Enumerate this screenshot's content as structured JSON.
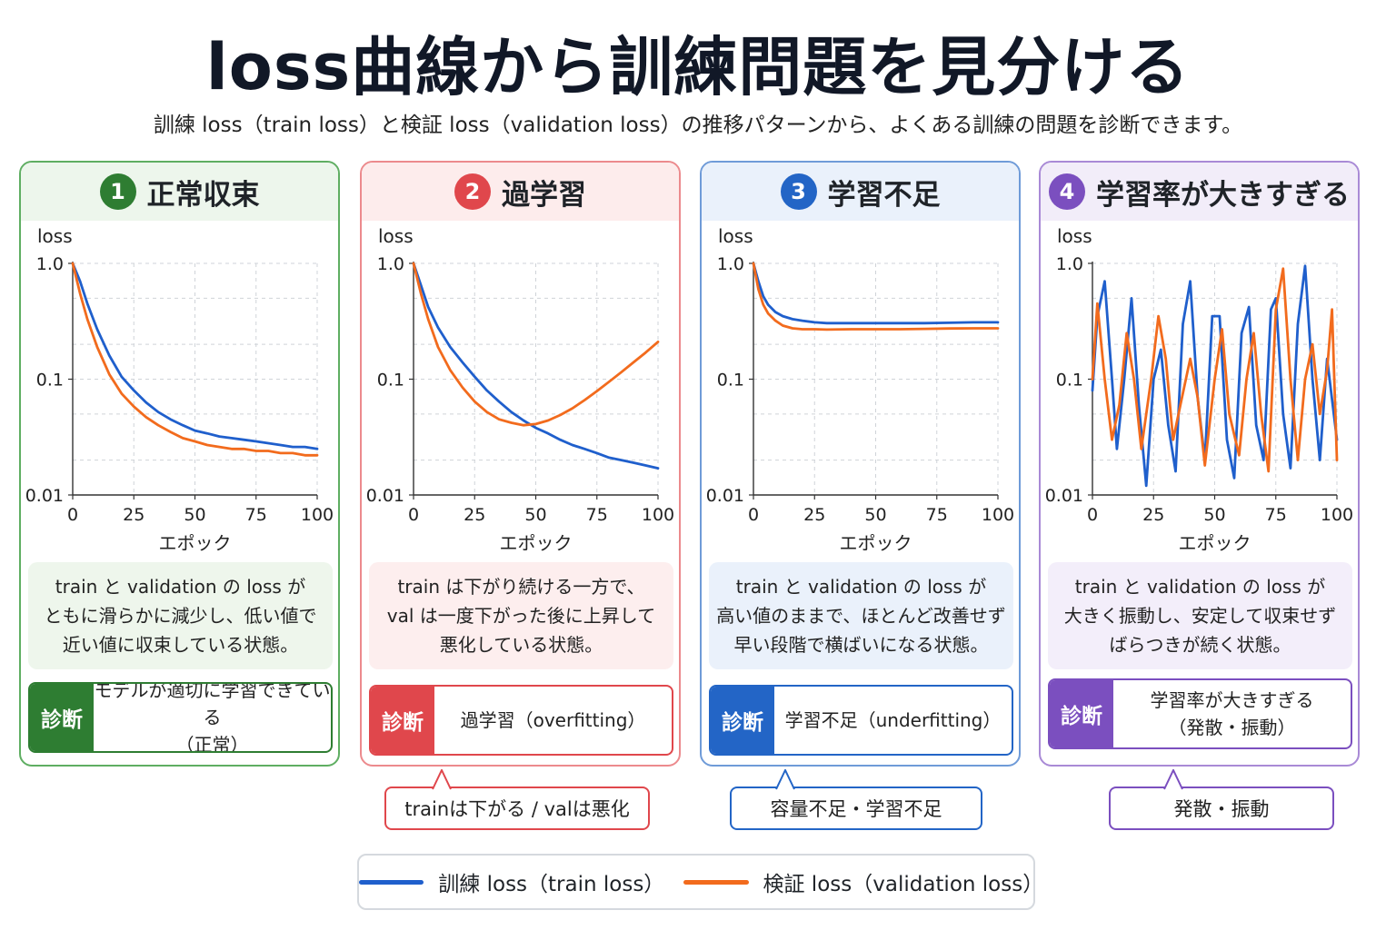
{
  "title": "loss曲線から訓練問題を見分ける",
  "subtitle": "訓練 loss（train loss）と検証 loss（validation loss）の推移パターンから、よくある訓練の問題を診断できます。",
  "colors": {
    "train": "#1f5fcc",
    "validation": "#f26b1d"
  },
  "diagnosis_label": "診断",
  "legend": {
    "train": "訓練 loss（train loss）",
    "validation": "検証 loss（validation loss）"
  },
  "panels": [
    {
      "number": "1",
      "title": "正常収束",
      "accent": "#2e7d32",
      "border": "#5fae62",
      "header_bg": "#edf6ec",
      "desc_bg": "#eef6ec",
      "description": "train と validation の loss が\nともに滑らかに減少し、低い値で\n近い値に収束している状態。",
      "diagnosis": "モデルが適切に学習できている\n（正常）",
      "callout": ""
    },
    {
      "number": "2",
      "title": "過学習",
      "accent": "#e0474c",
      "border": "#ec8a8d",
      "header_bg": "#fdecec",
      "desc_bg": "#fdeeee",
      "description": "train は下がり続ける一方で、\nval は一度下がった後に上昇して\n悪化している状態。",
      "diagnosis": "過学習（overfitting）",
      "callout": "trainは下がる / valは悪化"
    },
    {
      "number": "3",
      "title": "学習不足",
      "accent": "#2365c6",
      "border": "#6f9bd8",
      "header_bg": "#eaf1fb",
      "desc_bg": "#eaf1fb",
      "description": "train と validation の loss が\n高い値のままで、ほとんど改善せず\n早い段階で横ばいになる状態。",
      "diagnosis": "学習不足（underfitting）",
      "callout": "容量不足・学習不足"
    },
    {
      "number": "4",
      "title": "学習率が大きすぎる",
      "accent": "#7b4fbf",
      "border": "#a98ad6",
      "header_bg": "#f2edf9",
      "desc_bg": "#f3eefa",
      "description": "train と validation の loss が\n大きく振動し、安定して収束せず\nばらつきが続く状態。",
      "diagnosis": "学習率が大きすぎる\n（発散・振動）",
      "callout": "発散・振動"
    }
  ],
  "chart_data": [
    {
      "type": "line",
      "title": "正常収束",
      "ylabel": "loss",
      "xlabel": "エポック",
      "yscale": "log",
      "ylim": [
        0.01,
        1.0
      ],
      "xlim": [
        0,
        100
      ],
      "x_ticks": [
        "0",
        "25",
        "50",
        "75",
        "100"
      ],
      "y_ticks": [
        "0.01",
        "0.1",
        "1.0"
      ],
      "grid": true,
      "series": [
        {
          "name": "訓練 loss（train loss）",
          "points": [
            [
              0,
              1.0
            ],
            [
              3,
              0.7
            ],
            [
              6,
              0.45
            ],
            [
              10,
              0.27
            ],
            [
              15,
              0.16
            ],
            [
              20,
              0.105
            ],
            [
              25,
              0.08
            ],
            [
              30,
              0.063
            ],
            [
              35,
              0.052
            ],
            [
              40,
              0.045
            ],
            [
              45,
              0.04
            ],
            [
              50,
              0.036
            ],
            [
              55,
              0.034
            ],
            [
              60,
              0.032
            ],
            [
              65,
              0.031
            ],
            [
              70,
              0.03
            ],
            [
              75,
              0.029
            ],
            [
              80,
              0.028
            ],
            [
              85,
              0.027
            ],
            [
              90,
              0.026
            ],
            [
              95,
              0.026
            ],
            [
              100,
              0.025
            ]
          ]
        },
        {
          "name": "検証 loss（validation loss）",
          "points": [
            [
              0,
              1.0
            ],
            [
              3,
              0.55
            ],
            [
              6,
              0.33
            ],
            [
              10,
              0.19
            ],
            [
              15,
              0.11
            ],
            [
              20,
              0.075
            ],
            [
              25,
              0.058
            ],
            [
              30,
              0.047
            ],
            [
              35,
              0.04
            ],
            [
              40,
              0.035
            ],
            [
              45,
              0.031
            ],
            [
              50,
              0.029
            ],
            [
              55,
              0.027
            ],
            [
              60,
              0.026
            ],
            [
              65,
              0.025
            ],
            [
              70,
              0.025
            ],
            [
              75,
              0.024
            ],
            [
              80,
              0.024
            ],
            [
              85,
              0.023
            ],
            [
              90,
              0.023
            ],
            [
              95,
              0.022
            ],
            [
              100,
              0.022
            ]
          ]
        }
      ]
    },
    {
      "type": "line",
      "title": "過学習",
      "ylabel": "loss",
      "xlabel": "エポック",
      "yscale": "log",
      "ylim": [
        0.01,
        1.0
      ],
      "xlim": [
        0,
        100
      ],
      "x_ticks": [
        "0",
        "25",
        "50",
        "75",
        "100"
      ],
      "y_ticks": [
        "0.01",
        "0.1",
        "1.0"
      ],
      "grid": true,
      "series": [
        {
          "name": "訓練 loss（train loss）",
          "points": [
            [
              0,
              1.0
            ],
            [
              3,
              0.65
            ],
            [
              6,
              0.42
            ],
            [
              10,
              0.28
            ],
            [
              15,
              0.19
            ],
            [
              20,
              0.14
            ],
            [
              25,
              0.105
            ],
            [
              30,
              0.08
            ],
            [
              35,
              0.064
            ],
            [
              40,
              0.052
            ],
            [
              45,
              0.044
            ],
            [
              50,
              0.038
            ],
            [
              55,
              0.034
            ],
            [
              60,
              0.03
            ],
            [
              65,
              0.027
            ],
            [
              70,
              0.025
            ],
            [
              75,
              0.023
            ],
            [
              80,
              0.021
            ],
            [
              85,
              0.02
            ],
            [
              90,
              0.019
            ],
            [
              95,
              0.018
            ],
            [
              100,
              0.017
            ]
          ]
        },
        {
          "name": "検証 loss（validation loss）",
          "points": [
            [
              0,
              1.0
            ],
            [
              3,
              0.55
            ],
            [
              6,
              0.33
            ],
            [
              10,
              0.19
            ],
            [
              15,
              0.12
            ],
            [
              20,
              0.085
            ],
            [
              25,
              0.064
            ],
            [
              30,
              0.052
            ],
            [
              35,
              0.045
            ],
            [
              40,
              0.042
            ],
            [
              45,
              0.04
            ],
            [
              50,
              0.041
            ],
            [
              55,
              0.044
            ],
            [
              60,
              0.049
            ],
            [
              65,
              0.056
            ],
            [
              70,
              0.066
            ],
            [
              75,
              0.079
            ],
            [
              80,
              0.095
            ],
            [
              85,
              0.115
            ],
            [
              90,
              0.14
            ],
            [
              95,
              0.17
            ],
            [
              100,
              0.21
            ]
          ]
        }
      ]
    },
    {
      "type": "line",
      "title": "学習不足",
      "ylabel": "loss",
      "xlabel": "エポック",
      "yscale": "log",
      "ylim": [
        0.01,
        1.0
      ],
      "xlim": [
        0,
        100
      ],
      "x_ticks": [
        "0",
        "25",
        "50",
        "75",
        "100"
      ],
      "y_ticks": [
        "0.01",
        "0.1",
        "1.0"
      ],
      "grid": true,
      "series": [
        {
          "name": "訓練 loss（train loss）",
          "points": [
            [
              0,
              1.0
            ],
            [
              2,
              0.7
            ],
            [
              4,
              0.52
            ],
            [
              6,
              0.44
            ],
            [
              9,
              0.38
            ],
            [
              12,
              0.35
            ],
            [
              16,
              0.33
            ],
            [
              20,
              0.32
            ],
            [
              25,
              0.31
            ],
            [
              30,
              0.305
            ],
            [
              40,
              0.305
            ],
            [
              50,
              0.305
            ],
            [
              60,
              0.305
            ],
            [
              70,
              0.305
            ],
            [
              80,
              0.307
            ],
            [
              90,
              0.31
            ],
            [
              100,
              0.31
            ]
          ]
        },
        {
          "name": "検証 loss（validation loss）",
          "points": [
            [
              0,
              1.0
            ],
            [
              2,
              0.6
            ],
            [
              4,
              0.44
            ],
            [
              6,
              0.37
            ],
            [
              9,
              0.32
            ],
            [
              12,
              0.29
            ],
            [
              16,
              0.275
            ],
            [
              20,
              0.27
            ],
            [
              25,
              0.27
            ],
            [
              30,
              0.268
            ],
            [
              40,
              0.27
            ],
            [
              50,
              0.27
            ],
            [
              60,
              0.27
            ],
            [
              70,
              0.272
            ],
            [
              80,
              0.274
            ],
            [
              90,
              0.275
            ],
            [
              100,
              0.275
            ]
          ]
        }
      ]
    },
    {
      "type": "line",
      "title": "学習率が大きすぎる",
      "ylabel": "loss",
      "xlabel": "エポック",
      "yscale": "log",
      "ylim": [
        0.01,
        1.0
      ],
      "xlim": [
        0,
        100
      ],
      "x_ticks": [
        "0",
        "25",
        "50",
        "75",
        "100"
      ],
      "y_ticks": [
        "0.01",
        "0.1",
        "1.0"
      ],
      "grid": true,
      "series": [
        {
          "name": "訓練 loss（train loss）",
          "points": [
            [
              0,
              0.08
            ],
            [
              2,
              0.35
            ],
            [
              5,
              0.7
            ],
            [
              8,
              0.1
            ],
            [
              10,
              0.025
            ],
            [
              13,
              0.1
            ],
            [
              16,
              0.5
            ],
            [
              19,
              0.06
            ],
            [
              22,
              0.012
            ],
            [
              25,
              0.1
            ],
            [
              28,
              0.18
            ],
            [
              31,
              0.04
            ],
            [
              34,
              0.016
            ],
            [
              37,
              0.3
            ],
            [
              40,
              0.7
            ],
            [
              43,
              0.07
            ],
            [
              46,
              0.02
            ],
            [
              49,
              0.35
            ],
            [
              52,
              0.35
            ],
            [
              55,
              0.03
            ],
            [
              58,
              0.014
            ],
            [
              61,
              0.25
            ],
            [
              64,
              0.42
            ],
            [
              67,
              0.04
            ],
            [
              70,
              0.02
            ],
            [
              73,
              0.4
            ],
            [
              75,
              0.5
            ],
            [
              78,
              0.05
            ],
            [
              81,
              0.017
            ],
            [
              84,
              0.3
            ],
            [
              87,
              0.95
            ],
            [
              90,
              0.1
            ],
            [
              93,
              0.02
            ],
            [
              96,
              0.15
            ],
            [
              100,
              0.03
            ]
          ]
        },
        {
          "name": "検証 loss（validation loss）",
          "points": [
            [
              0,
              0.1
            ],
            [
              2,
              0.45
            ],
            [
              5,
              0.1
            ],
            [
              8,
              0.03
            ],
            [
              11,
              0.06
            ],
            [
              14,
              0.25
            ],
            [
              17,
              0.1
            ],
            [
              20,
              0.025
            ],
            [
              24,
              0.1
            ],
            [
              27,
              0.35
            ],
            [
              30,
              0.15
            ],
            [
              33,
              0.03
            ],
            [
              36,
              0.06
            ],
            [
              40,
              0.15
            ],
            [
              43,
              0.07
            ],
            [
              46,
              0.018
            ],
            [
              50,
              0.1
            ],
            [
              53,
              0.27
            ],
            [
              56,
              0.05
            ],
            [
              60,
              0.022
            ],
            [
              63,
              0.1
            ],
            [
              66,
              0.25
            ],
            [
              69,
              0.05
            ],
            [
              72,
              0.016
            ],
            [
              75,
              0.4
            ],
            [
              78,
              0.9
            ],
            [
              81,
              0.1
            ],
            [
              84,
              0.02
            ],
            [
              87,
              0.1
            ],
            [
              90,
              0.2
            ],
            [
              93,
              0.05
            ],
            [
              96,
              0.12
            ],
            [
              98,
              0.4
            ],
            [
              100,
              0.02
            ]
          ]
        }
      ]
    }
  ]
}
